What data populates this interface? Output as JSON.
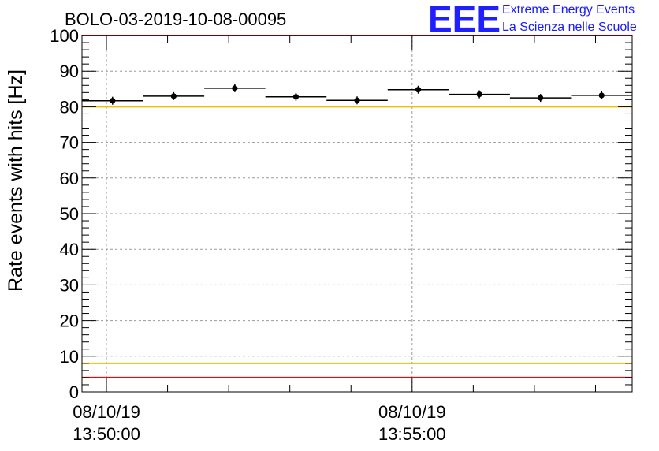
{
  "chart_data": {
    "type": "scatter",
    "title": "BOLO-03-2019-10-08-00095",
    "xlabel": "",
    "ylabel": "Rate events with hits [Hz]",
    "ylim": [
      0,
      100
    ],
    "y_ticks": [
      0,
      10,
      20,
      30,
      40,
      50,
      60,
      70,
      80,
      90,
      100
    ],
    "x_ticks": [
      {
        "date": "08/10/19",
        "time": "13:50:00",
        "minute": 0
      },
      {
        "date": "08/10/19",
        "time": "13:55:00",
        "minute": 5
      }
    ],
    "xlim_minutes": [
      -0.4,
      8.6
    ],
    "grid": true,
    "series": [
      {
        "points": [
          {
            "x": 0.1,
            "xerr": 0.5,
            "y": 81.7
          },
          {
            "x": 1.1,
            "xerr": 0.5,
            "y": 83.0
          },
          {
            "x": 2.1,
            "xerr": 0.5,
            "y": 85.2
          },
          {
            "x": 3.1,
            "xerr": 0.5,
            "y": 82.8
          },
          {
            "x": 4.1,
            "xerr": 0.5,
            "y": 81.8
          },
          {
            "x": 5.1,
            "xerr": 0.5,
            "y": 84.8
          },
          {
            "x": 6.1,
            "xerr": 0.5,
            "y": 83.5
          },
          {
            "x": 7.1,
            "xerr": 0.5,
            "y": 82.5
          },
          {
            "x": 8.1,
            "xerr": 0.5,
            "y": 83.2
          }
        ],
        "color": "#000000"
      }
    ],
    "reference_lines": [
      {
        "y": 100,
        "color": "#ff0000"
      },
      {
        "y": 80,
        "color": "#f0c000"
      },
      {
        "y": 8,
        "color": "#f0c000"
      },
      {
        "y": 4,
        "color": "#ff0000"
      }
    ]
  },
  "logo": {
    "mark": "EEE",
    "line1": "Extreme Energy Events",
    "line2": "La Scienza nelle Scuole"
  }
}
